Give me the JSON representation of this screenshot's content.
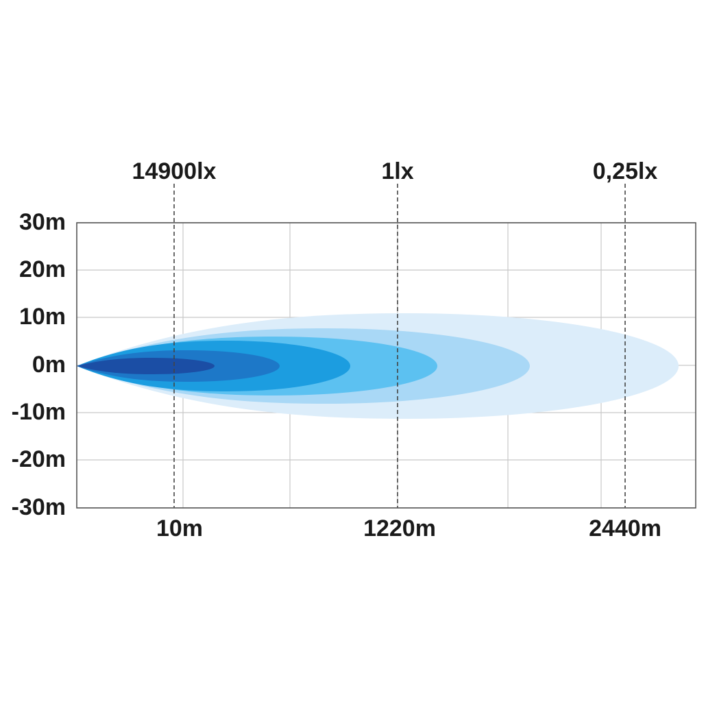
{
  "illuminance_labels": [
    "14900lx",
    "1lx",
    "0,25lx"
  ],
  "y_axis_labels": [
    "30m",
    "20m",
    "10m",
    "0m",
    "-10m",
    "-20m",
    "-30m"
  ],
  "x_axis_labels": [
    "10m",
    "1220m",
    "2440m"
  ]
}
